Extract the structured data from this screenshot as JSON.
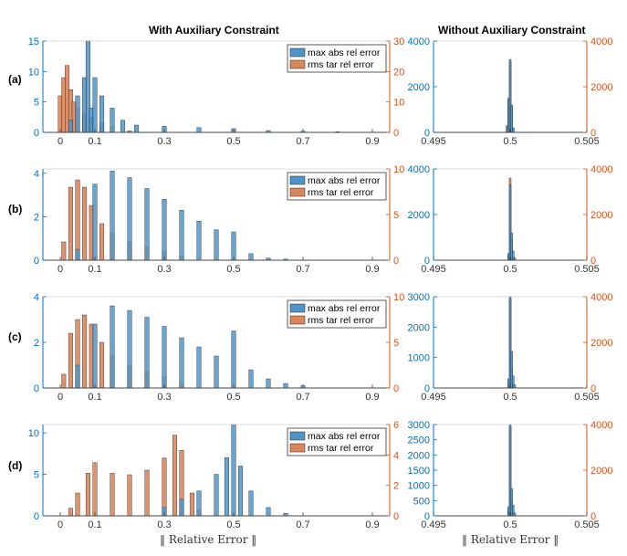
{
  "titles": {
    "left": "With Auxiliary Constraint",
    "right": "Without Auxiliary Constraint"
  },
  "row_labels": [
    "(a)",
    "(b)",
    "(c)",
    "(d)"
  ],
  "xlabels": {
    "left": "‖ Relative Error ‖",
    "right": "‖ Relative Error ‖"
  },
  "colors": {
    "blue": "#0072BD",
    "blue_fill": "#4d95c9",
    "orange": "#D95319",
    "orange_fill": "#d9885e",
    "axis_left": "#0072BD",
    "axis_right": "#D95319"
  },
  "legend": [
    "max abs rel error",
    "rms tar rel error"
  ],
  "chart_data": [
    {
      "type": "bar",
      "panel": "(a) with auxiliary constraint",
      "xlim": [
        -0.05,
        0.95
      ],
      "xticks": [
        0,
        0.1,
        0.3,
        0.5,
        0.7,
        0.9
      ],
      "ylim_left": [
        0,
        15
      ],
      "yticks_left": [
        0,
        5,
        10,
        15
      ],
      "ylim_right": [
        0,
        30
      ],
      "yticks_right": [
        0,
        10,
        20,
        30
      ],
      "legend_position": "top-right",
      "series": [
        {
          "name": "max abs rel error",
          "axis": "left",
          "x": [
            0.03,
            0.05,
            0.07,
            0.08,
            0.09,
            0.1,
            0.12,
            0.15,
            0.18,
            0.22,
            0.3,
            0.4,
            0.5,
            0.6,
            0.7,
            0.8
          ],
          "values": [
            2,
            6,
            9,
            15,
            4,
            9,
            6,
            4,
            2,
            1.2,
            1,
            0.8,
            0.6,
            0.3,
            0.2,
            0.1
          ]
        },
        {
          "name": "rms tar rel error",
          "axis": "right",
          "x": [
            0.0,
            0.01,
            0.02,
            0.03,
            0.04,
            0.05,
            0.07,
            0.09,
            0.12,
            0.15,
            0.2
          ],
          "values": [
            12,
            18,
            22,
            14,
            10,
            8,
            6,
            5,
            3,
            2,
            0.5
          ]
        }
      ]
    },
    {
      "type": "bar",
      "panel": "(b) with auxiliary constraint",
      "xlim": [
        -0.05,
        0.95
      ],
      "xticks": [
        0,
        0.1,
        0.3,
        0.5,
        0.7,
        0.9
      ],
      "ylim_left": [
        0,
        4.2
      ],
      "yticks_left": [
        0,
        2,
        4
      ],
      "ylim_right": [
        0,
        10
      ],
      "yticks_right": [
        0,
        5,
        10
      ],
      "legend_position": "top-right",
      "series": [
        {
          "name": "max abs rel error",
          "axis": "left",
          "x": [
            0.05,
            0.1,
            0.15,
            0.2,
            0.25,
            0.3,
            0.35,
            0.4,
            0.45,
            0.5,
            0.55,
            0.6,
            0.65
          ],
          "values": [
            0.5,
            3.5,
            4.1,
            3.8,
            3.3,
            2.8,
            2.3,
            1.8,
            1.4,
            1.3,
            0.3,
            0.1,
            0.05
          ]
        },
        {
          "name": "rms tar rel error",
          "axis": "right",
          "x": [
            0.01,
            0.03,
            0.05,
            0.07,
            0.09,
            0.12,
            0.15,
            0.2,
            0.25,
            0.3,
            0.35
          ],
          "values": [
            2,
            8,
            8.8,
            8,
            6,
            4,
            3,
            2,
            1.5,
            1,
            0.5
          ]
        }
      ]
    },
    {
      "type": "bar",
      "panel": "(c) with auxiliary constraint",
      "xlim": [
        -0.05,
        0.95
      ],
      "xticks": [
        0,
        0.1,
        0.3,
        0.5,
        0.7,
        0.9
      ],
      "ylim_left": [
        0,
        4
      ],
      "yticks_left": [
        0,
        2,
        4
      ],
      "ylim_right": [
        0,
        10
      ],
      "yticks_right": [
        0,
        5,
        10
      ],
      "legend_position": "top-right",
      "series": [
        {
          "name": "max abs rel error",
          "axis": "left",
          "x": [
            0.05,
            0.1,
            0.15,
            0.2,
            0.25,
            0.3,
            0.35,
            0.4,
            0.45,
            0.5,
            0.55,
            0.6,
            0.65,
            0.7
          ],
          "values": [
            1,
            2.8,
            3.6,
            3.4,
            3.1,
            2.7,
            2.2,
            1.8,
            1.4,
            2.5,
            0.8,
            0.4,
            0.2,
            0.1
          ]
        },
        {
          "name": "rms tar rel error",
          "axis": "right",
          "x": [
            0.01,
            0.03,
            0.05,
            0.07,
            0.09,
            0.12,
            0.15,
            0.2,
            0.25,
            0.3,
            0.35
          ],
          "values": [
            1.5,
            6,
            7.5,
            8,
            7,
            5,
            3.5,
            2.5,
            1.8,
            1.2,
            0.5
          ]
        }
      ]
    },
    {
      "type": "bar",
      "panel": "(d) with auxiliary constraint",
      "xlim": [
        -0.05,
        0.95
      ],
      "xticks": [
        0,
        0.1,
        0.3,
        0.5,
        0.7,
        0.9
      ],
      "ylim_left": [
        0,
        11
      ],
      "yticks_left": [
        0,
        5,
        10
      ],
      "ylim_right": [
        0,
        6
      ],
      "yticks_right": [
        0,
        2,
        4,
        6
      ],
      "legend_position": "top-right",
      "series": [
        {
          "name": "max abs rel error",
          "axis": "left",
          "x": [
            0.3,
            0.35,
            0.4,
            0.45,
            0.48,
            0.5,
            0.52,
            0.55,
            0.6,
            0.65
          ],
          "values": [
            1,
            2,
            3,
            5,
            7,
            11,
            6,
            3,
            1,
            0.3
          ]
        },
        {
          "name": "rms tar rel error",
          "axis": "right",
          "x": [
            0.03,
            0.05,
            0.08,
            0.1,
            0.15,
            0.2,
            0.25,
            0.3,
            0.33,
            0.35,
            0.38,
            0.4
          ],
          "values": [
            0.5,
            1.5,
            2.8,
            3.5,
            2.8,
            2.7,
            3,
            3.8,
            5.3,
            4.3,
            1.5,
            0.4
          ]
        }
      ]
    },
    {
      "type": "bar",
      "panel": "(a) without auxiliary constraint",
      "xlim": [
        0.495,
        0.505
      ],
      "xticks": [
        0.495,
        0.5,
        0.505
      ],
      "ylim_left": [
        0,
        4000
      ],
      "yticks_left": [
        0,
        2000,
        4000
      ],
      "ylim_right": [
        0,
        4000
      ],
      "yticks_right": [
        0,
        2000,
        4000
      ],
      "series": [
        {
          "name": "max abs rel error",
          "axis": "left",
          "x": [
            0.4998,
            0.4999,
            0.5,
            0.5001,
            0.5002
          ],
          "values": [
            300,
            1500,
            3200,
            1200,
            200
          ]
        },
        {
          "name": "rms tar rel error",
          "axis": "right",
          "x": [
            0.4998,
            0.4999,
            0.5,
            0.5001,
            0.5002
          ],
          "values": [
            250,
            1400,
            3100,
            1150,
            180
          ]
        }
      ]
    },
    {
      "type": "bar",
      "panel": "(b) without auxiliary constraint",
      "xlim": [
        0.495,
        0.505
      ],
      "xticks": [
        0.495,
        0.5,
        0.505
      ],
      "ylim_left": [
        0,
        4000
      ],
      "yticks_left": [
        0,
        2000,
        4000
      ],
      "ylim_right": [
        0,
        4000
      ],
      "yticks_right": [
        0,
        2000,
        4000
      ],
      "series": [
        {
          "name": "max abs rel error",
          "axis": "left",
          "x": [
            0.4999,
            0.5,
            0.5001,
            0.5002,
            0.5003
          ],
          "values": [
            300,
            3300,
            1200,
            400,
            100
          ]
        },
        {
          "name": "rms tar rel error",
          "axis": "right",
          "x": [
            0.4999,
            0.5,
            0.5001,
            0.5002
          ],
          "values": [
            200,
            3600,
            900,
            150
          ]
        }
      ]
    },
    {
      "type": "bar",
      "panel": "(c) without auxiliary constraint",
      "xlim": [
        0.495,
        0.505
      ],
      "xticks": [
        0.495,
        0.5,
        0.505
      ],
      "ylim_left": [
        0,
        3000
      ],
      "yticks_left": [
        0,
        1000,
        2000,
        3000
      ],
      "ylim_right": [
        0,
        4000
      ],
      "yticks_right": [
        0,
        2000,
        4000
      ],
      "series": [
        {
          "name": "max abs rel error",
          "axis": "left",
          "x": [
            0.4999,
            0.5,
            0.5001,
            0.5002,
            0.5003
          ],
          "values": [
            300,
            3000,
            1200,
            400,
            100
          ]
        },
        {
          "name": "rms tar rel error",
          "axis": "right",
          "x": [
            0.4999,
            0.5,
            0.5001,
            0.5002
          ],
          "values": [
            200,
            3900,
            900,
            150
          ]
        }
      ]
    },
    {
      "type": "bar",
      "panel": "(d) without auxiliary constraint",
      "xlim": [
        0.495,
        0.505
      ],
      "xticks": [
        0.495,
        0.5,
        0.505
      ],
      "ylim_left": [
        0,
        3000
      ],
      "yticks_left": [
        0,
        500,
        1000,
        1500,
        2000,
        2500,
        3000
      ],
      "ylim_right": [
        0,
        4000
      ],
      "yticks_right": [
        0,
        2000,
        4000
      ],
      "series": [
        {
          "name": "max abs rel error",
          "axis": "left",
          "x": [
            0.4999,
            0.5,
            0.5001,
            0.5002,
            0.5003
          ],
          "values": [
            300,
            3000,
            900,
            350,
            100
          ]
        },
        {
          "name": "rms tar rel error",
          "axis": "right",
          "x": [
            0.4999,
            0.5,
            0.5001,
            0.5002
          ],
          "values": [
            200,
            3900,
            700,
            150
          ]
        }
      ]
    }
  ]
}
